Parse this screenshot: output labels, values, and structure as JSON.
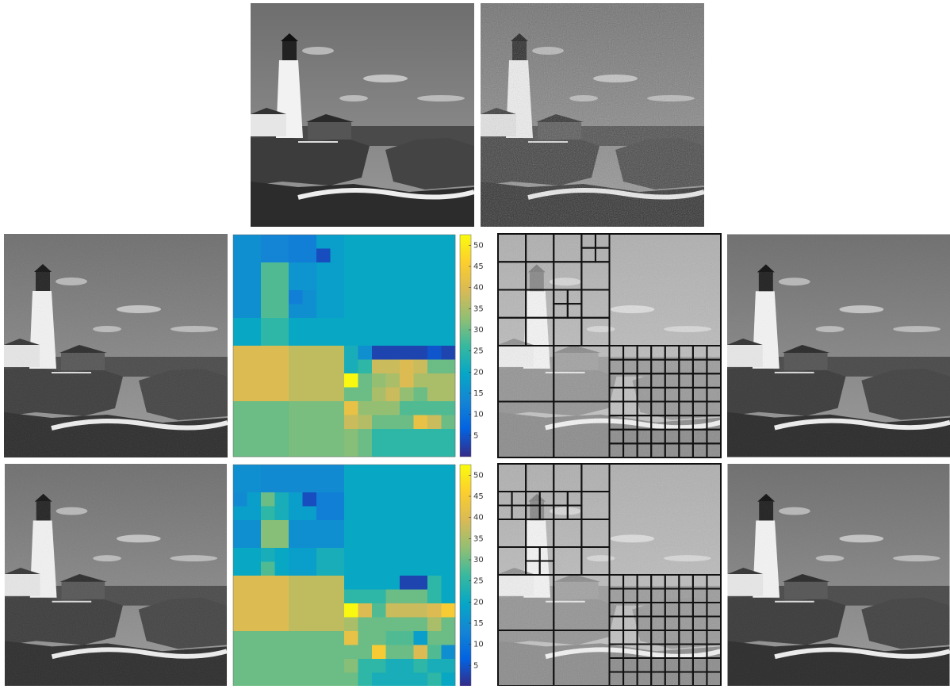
{
  "heatmaps": [
    {
      "blocks": [
        [
          0,
          0,
          2,
          15
        ],
        [
          0,
          2,
          2,
          13
        ],
        [
          0,
          4,
          2,
          12
        ],
        [
          0,
          6,
          1,
          18
        ],
        [
          0,
          7,
          1,
          18
        ],
        [
          1,
          6,
          1,
          4
        ],
        [
          1,
          7,
          1,
          18
        ],
        [
          2,
          0,
          2,
          15
        ],
        [
          2,
          2,
          2,
          28
        ],
        [
          2,
          4,
          2,
          16
        ],
        [
          2,
          6,
          2,
          18
        ],
        [
          4,
          0,
          2,
          15
        ],
        [
          4,
          2,
          2,
          28
        ],
        [
          4,
          4,
          1,
          12
        ],
        [
          4,
          5,
          1,
          15
        ],
        [
          5,
          4,
          1,
          15
        ],
        [
          5,
          5,
          1,
          15
        ],
        [
          4,
          6,
          2,
          18
        ],
        [
          6,
          0,
          2,
          20
        ],
        [
          6,
          2,
          2,
          25
        ],
        [
          6,
          4,
          2,
          20
        ],
        [
          6,
          6,
          2,
          20
        ],
        [
          0,
          8,
          8,
          20
        ],
        [
          8,
          0,
          4,
          40
        ],
        [
          8,
          4,
          4,
          37
        ],
        [
          12,
          0,
          4,
          30
        ],
        [
          12,
          4,
          4,
          31
        ],
        [
          8,
          8,
          1,
          22
        ],
        [
          8,
          9,
          1,
          15
        ],
        [
          8,
          10,
          1,
          3
        ],
        [
          8,
          11,
          1,
          3
        ],
        [
          8,
          12,
          1,
          3
        ],
        [
          8,
          13,
          1,
          3
        ],
        [
          8,
          14,
          1,
          5
        ],
        [
          8,
          15,
          1,
          3
        ],
        [
          9,
          8,
          1,
          22
        ],
        [
          9,
          9,
          1,
          25
        ],
        [
          9,
          10,
          1,
          38
        ],
        [
          9,
          11,
          1,
          38
        ],
        [
          9,
          12,
          1,
          40
        ],
        [
          9,
          13,
          1,
          38
        ],
        [
          9,
          14,
          1,
          30
        ],
        [
          9,
          15,
          1,
          30
        ],
        [
          10,
          8,
          1,
          52
        ],
        [
          10,
          9,
          1,
          30
        ],
        [
          10,
          10,
          1,
          33
        ],
        [
          10,
          11,
          1,
          35
        ],
        [
          10,
          12,
          1,
          40
        ],
        [
          10,
          13,
          1,
          35
        ],
        [
          10,
          14,
          1,
          35
        ],
        [
          10,
          15,
          1,
          35
        ],
        [
          11,
          8,
          1,
          30
        ],
        [
          11,
          9,
          1,
          30
        ],
        [
          11,
          10,
          1,
          35
        ],
        [
          11,
          11,
          1,
          38
        ],
        [
          11,
          12,
          1,
          33
        ],
        [
          11,
          13,
          1,
          30
        ],
        [
          11,
          14,
          1,
          35
        ],
        [
          11,
          15,
          1,
          35
        ],
        [
          12,
          8,
          1,
          42
        ],
        [
          12,
          9,
          1,
          33
        ],
        [
          12,
          10,
          1,
          33
        ],
        [
          12,
          11,
          1,
          33
        ],
        [
          12,
          12,
          1,
          28
        ],
        [
          12,
          13,
          1,
          28
        ],
        [
          12,
          14,
          1,
          28
        ],
        [
          12,
          15,
          1,
          28
        ],
        [
          13,
          8,
          1,
          38
        ],
        [
          13,
          9,
          1,
          36
        ],
        [
          13,
          10,
          1,
          30
        ],
        [
          13,
          11,
          1,
          30
        ],
        [
          13,
          12,
          1,
          30
        ],
        [
          13,
          13,
          1,
          42
        ],
        [
          13,
          14,
          1,
          38
        ],
        [
          13,
          15,
          1,
          30
        ],
        [
          14,
          8,
          1,
          32
        ],
        [
          14,
          9,
          1,
          30
        ],
        [
          14,
          10,
          1,
          25
        ],
        [
          14,
          11,
          1,
          25
        ],
        [
          14,
          12,
          1,
          25
        ],
        [
          14,
          13,
          1,
          25
        ],
        [
          14,
          14,
          1,
          25
        ],
        [
          14,
          15,
          1,
          25
        ],
        [
          15,
          8,
          1,
          32
        ],
        [
          15,
          9,
          1,
          30
        ],
        [
          15,
          10,
          1,
          25
        ],
        [
          15,
          11,
          1,
          25
        ],
        [
          15,
          12,
          1,
          25
        ],
        [
          15,
          13,
          1,
          25
        ],
        [
          15,
          14,
          1,
          25
        ],
        [
          15,
          15,
          1,
          25
        ]
      ],
      "colorbar": {
        "range": [
          0,
          52.5
        ],
        "ticks": [
          5,
          10,
          15,
          20,
          25,
          30,
          35,
          40,
          45,
          50
        ]
      }
    },
    {
      "blocks": [
        [
          0,
          0,
          2,
          15
        ],
        [
          0,
          2,
          2,
          14
        ],
        [
          0,
          4,
          2,
          14
        ],
        [
          0,
          6,
          2,
          14
        ],
        [
          2,
          0,
          1,
          14
        ],
        [
          2,
          1,
          1,
          18
        ],
        [
          2,
          2,
          1,
          30
        ],
        [
          2,
          3,
          1,
          22
        ],
        [
          3,
          0,
          1,
          18
        ],
        [
          3,
          1,
          1,
          18
        ],
        [
          3,
          2,
          1,
          25
        ],
        [
          3,
          3,
          1,
          22
        ],
        [
          2,
          4,
          1,
          18
        ],
        [
          2,
          5,
          1,
          4
        ],
        [
          3,
          4,
          1,
          18
        ],
        [
          3,
          5,
          1,
          18
        ],
        [
          2,
          6,
          2,
          12
        ],
        [
          4,
          0,
          2,
          15
        ],
        [
          4,
          2,
          2,
          32
        ],
        [
          4,
          4,
          2,
          15
        ],
        [
          4,
          6,
          2,
          15
        ],
        [
          6,
          0,
          2,
          20
        ],
        [
          6,
          2,
          1,
          22
        ],
        [
          6,
          3,
          1,
          20
        ],
        [
          7,
          2,
          1,
          28
        ],
        [
          7,
          3,
          1,
          20
        ],
        [
          6,
          4,
          2,
          18
        ],
        [
          6,
          6,
          2,
          22
        ],
        [
          0,
          8,
          8,
          20
        ],
        [
          8,
          0,
          4,
          40
        ],
        [
          8,
          4,
          4,
          37
        ],
        [
          12,
          0,
          4,
          30
        ],
        [
          12,
          4,
          4,
          30
        ],
        [
          8,
          8,
          1,
          20
        ],
        [
          8,
          9,
          1,
          20
        ],
        [
          8,
          10,
          1,
          20
        ],
        [
          8,
          11,
          1,
          20
        ],
        [
          8,
          12,
          1,
          3
        ],
        [
          8,
          13,
          1,
          3
        ],
        [
          8,
          14,
          1,
          25
        ],
        [
          8,
          15,
          1,
          20
        ],
        [
          9,
          8,
          1,
          25
        ],
        [
          9,
          9,
          1,
          25
        ],
        [
          9,
          10,
          1,
          25
        ],
        [
          9,
          11,
          1,
          30
        ],
        [
          9,
          12,
          1,
          30
        ],
        [
          9,
          13,
          1,
          30
        ],
        [
          9,
          14,
          1,
          25
        ],
        [
          9,
          15,
          1,
          20
        ],
        [
          10,
          8,
          1,
          52
        ],
        [
          10,
          9,
          1,
          40
        ],
        [
          10,
          10,
          1,
          28
        ],
        [
          10,
          11,
          1,
          38
        ],
        [
          10,
          12,
          1,
          38
        ],
        [
          10,
          13,
          1,
          38
        ],
        [
          10,
          14,
          1,
          40
        ],
        [
          10,
          15,
          1,
          45
        ],
        [
          11,
          8,
          1,
          35
        ],
        [
          11,
          9,
          1,
          30
        ],
        [
          11,
          10,
          1,
          30
        ],
        [
          11,
          11,
          1,
          30
        ],
        [
          11,
          12,
          1,
          30
        ],
        [
          11,
          13,
          1,
          30
        ],
        [
          11,
          14,
          1,
          35
        ],
        [
          11,
          15,
          1,
          30
        ],
        [
          12,
          8,
          1,
          42
        ],
        [
          12,
          9,
          1,
          30
        ],
        [
          12,
          10,
          1,
          30
        ],
        [
          12,
          11,
          1,
          28
        ],
        [
          12,
          12,
          1,
          28
        ],
        [
          12,
          13,
          1,
          18
        ],
        [
          12,
          14,
          1,
          30
        ],
        [
          12,
          15,
          1,
          30
        ],
        [
          13,
          8,
          1,
          30
        ],
        [
          13,
          9,
          1,
          30
        ],
        [
          13,
          10,
          1,
          45
        ],
        [
          13,
          11,
          1,
          30
        ],
        [
          13,
          12,
          1,
          30
        ],
        [
          13,
          13,
          1,
          40
        ],
        [
          13,
          14,
          1,
          28
        ],
        [
          13,
          15,
          1,
          15
        ],
        [
          14,
          8,
          1,
          32
        ],
        [
          14,
          9,
          1,
          25
        ],
        [
          14,
          10,
          1,
          25
        ],
        [
          14,
          11,
          1,
          22
        ],
        [
          14,
          12,
          1,
          22
        ],
        [
          14,
          13,
          1,
          25
        ],
        [
          14,
          14,
          1,
          22
        ],
        [
          14,
          15,
          1,
          22
        ],
        [
          15,
          8,
          1,
          30
        ],
        [
          15,
          9,
          1,
          25
        ],
        [
          15,
          10,
          1,
          22
        ],
        [
          15,
          11,
          1,
          22
        ],
        [
          15,
          12,
          1,
          22
        ],
        [
          15,
          13,
          1,
          22
        ],
        [
          15,
          14,
          1,
          25
        ],
        [
          15,
          15,
          1,
          20
        ]
      ],
      "colorbar": {
        "range": [
          0,
          52.5
        ],
        "ticks": [
          5,
          10,
          15,
          20,
          25,
          30,
          35,
          40,
          45,
          50
        ]
      }
    }
  ]
}
